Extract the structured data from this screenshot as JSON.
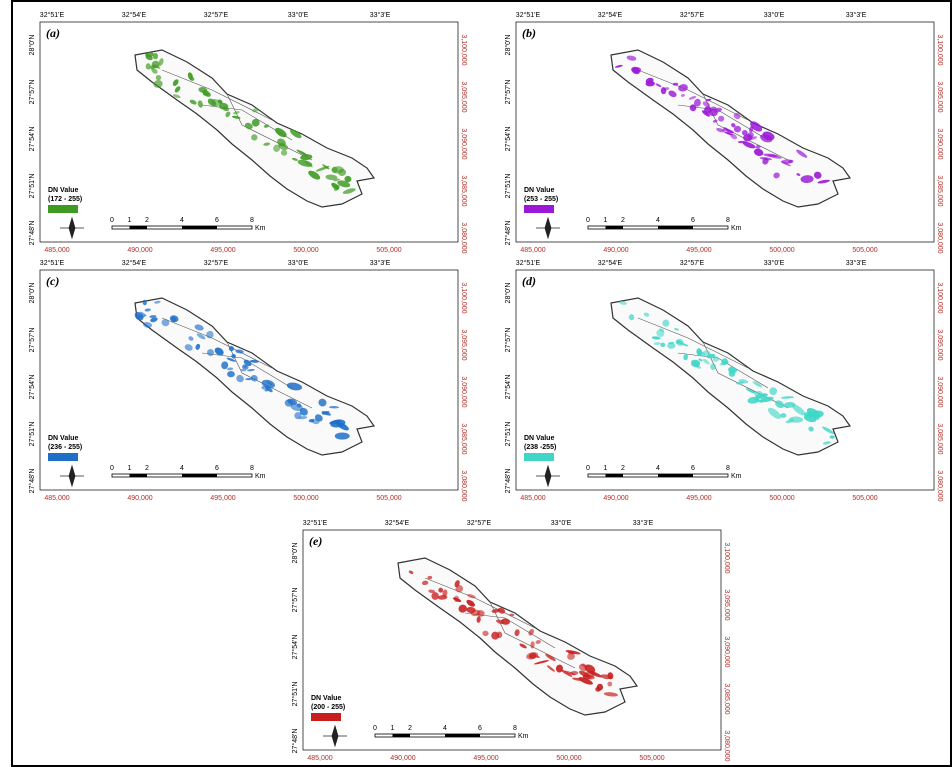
{
  "figure": {
    "top_labels": [
      "32°51'E",
      "32°54'E",
      "32°57'E",
      "33°0'E",
      "33°3'E"
    ],
    "left_labels": [
      "28°0'N",
      "27°57'N",
      "27°54'N",
      "27°51'N",
      "27°48'N"
    ],
    "right_labels": [
      "3,100,000",
      "3,095,000",
      "3,090,000",
      "3,085,000",
      "3,080,000"
    ],
    "bottom_labels": [
      "485,000",
      "490,000",
      "495,000",
      "500,000",
      "505,000"
    ],
    "legend_title": "DN Value",
    "scale_labels": [
      "0",
      "1",
      "2",
      "4",
      "6",
      "8"
    ],
    "scale_unit": "Km"
  },
  "panels": [
    {
      "label": "(a)",
      "range": "(172 - 255)",
      "color": "#3f9a22"
    },
    {
      "label": "(b)",
      "range": "(253 - 255)",
      "color": "#9b19d6"
    },
    {
      "label": "(c)",
      "range": "(236 - 255)",
      "color": "#1f6fc8"
    },
    {
      "label": "(d)",
      "range": "(238 -255)",
      "color": "#3fd6c8"
    },
    {
      "label": "(e)",
      "range": "(200 - 255)",
      "color": "#c81e1e"
    }
  ]
}
